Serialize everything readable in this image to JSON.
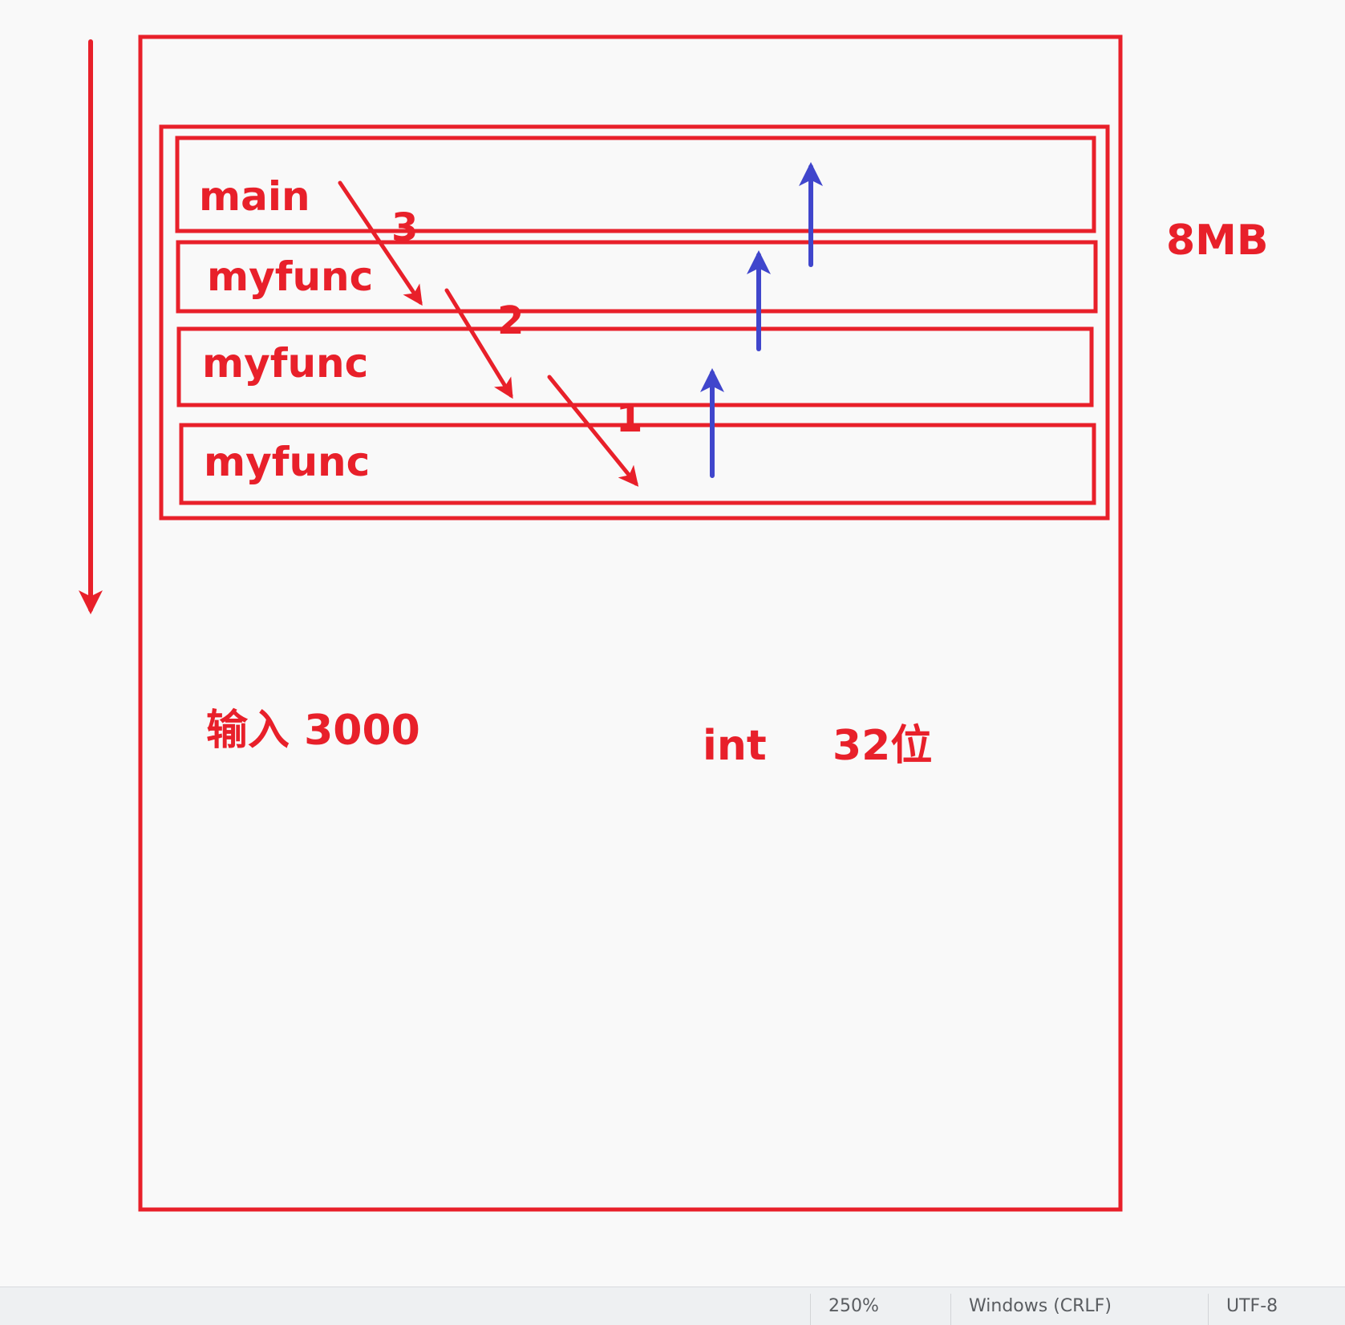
{
  "diagram": {
    "stack_frames": [
      {
        "label": "main"
      },
      {
        "label": "myfunc"
      },
      {
        "label": "myfunc"
      },
      {
        "label": "myfunc"
      }
    ],
    "call_steps": [
      "3",
      "2",
      "1"
    ],
    "stack_size_label": "8MB",
    "input_label": "输入 3000",
    "int_label": "int",
    "bits_label": "32位",
    "colors": {
      "outline": "#e8202a",
      "return_arrows": "#4046cc"
    }
  },
  "status_bar": {
    "zoom": "250%",
    "line_ending": "Windows (CRLF)",
    "encoding": "UTF-8"
  }
}
